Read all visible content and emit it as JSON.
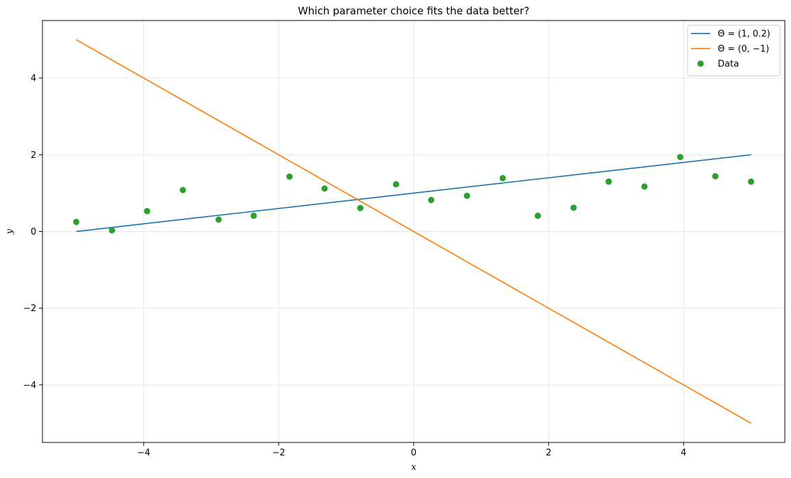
{
  "chart_data": {
    "type": "line",
    "title": "Which parameter choice fits the data better?",
    "xlabel": "x",
    "ylabel": "y",
    "xlim": [
      -5.5,
      5.5
    ],
    "ylim": [
      -5.5,
      5.5
    ],
    "xticks": [
      -4,
      -2,
      0,
      2,
      4
    ],
    "yticks": [
      -4,
      -2,
      0,
      2,
      4
    ],
    "xtick_labels": [
      "−4",
      "−2",
      "0",
      "2",
      "4"
    ],
    "ytick_labels": [
      "−4",
      "−2",
      "0",
      "2",
      "4"
    ],
    "grid": true,
    "legend_position": "top-right",
    "series": [
      {
        "name": "Θ = (1,  0.2)",
        "kind": "line",
        "color": "#1f77b4",
        "x": [
          -5,
          5
        ],
        "y": [
          0,
          2
        ]
      },
      {
        "name": "Θ = (0,  −1)",
        "kind": "line",
        "color": "#ff7f0e",
        "x": [
          -5,
          5
        ],
        "y": [
          5,
          -5
        ]
      },
      {
        "name": "Data",
        "kind": "scatter",
        "color": "#2ca02c",
        "x": [
          -5.0,
          -4.47,
          -3.95,
          -3.42,
          -2.89,
          -2.37,
          -1.84,
          -1.32,
          -0.79,
          -0.26,
          0.26,
          0.79,
          1.32,
          1.84,
          2.37,
          2.89,
          3.42,
          3.95,
          4.47,
          5.0
        ],
        "y": [
          0.25,
          0.03,
          0.53,
          1.08,
          0.31,
          0.41,
          1.43,
          1.12,
          0.61,
          1.23,
          0.82,
          0.93,
          1.39,
          0.41,
          0.62,
          1.3,
          1.17,
          1.94,
          1.44,
          1.3
        ]
      }
    ]
  }
}
